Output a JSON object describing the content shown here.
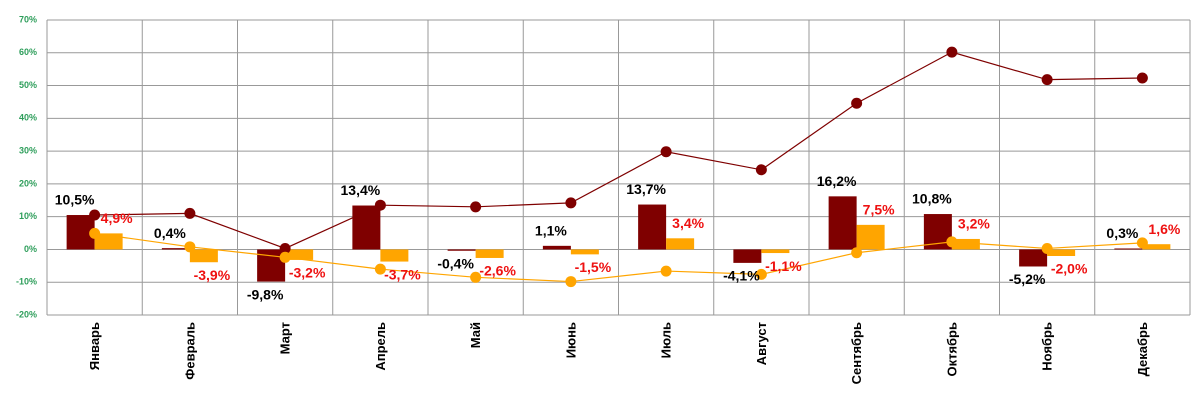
{
  "chart_data": {
    "type": "bar-line",
    "categories": [
      "Январь",
      "Февраль",
      "Март",
      "Апрель",
      "Май",
      "Июнь",
      "Июль",
      "Август",
      "Сентябрь",
      "Октябрь",
      "Ноябрь",
      "Декабрь"
    ],
    "series": [
      {
        "type": "bar",
        "color": "#7f0000",
        "values": [
          10.5,
          0.4,
          -9.8,
          13.4,
          -0.4,
          1.1,
          13.7,
          -4.1,
          16.2,
          10.8,
          -5.2,
          0.3
        ],
        "value_labels": [
          "10,5%",
          "0,4%",
          "-9,8%",
          "13,4%",
          "-0,4%",
          "1,1%",
          "13,7%",
          "-4,1%",
          "16,2%",
          "10,8%",
          "-5,2%",
          "0,3%"
        ]
      },
      {
        "type": "bar",
        "color": "#ffa500",
        "values": [
          4.9,
          -3.9,
          -3.2,
          -3.7,
          -2.6,
          -1.5,
          3.4,
          -1.1,
          7.5,
          3.2,
          -2.0,
          1.6
        ],
        "value_labels": [
          "4,9%",
          "-3,9%",
          "-3,2%",
          "-3,7%",
          "-2,6%",
          "-1,5%",
          "3,4%",
          "-1,1%",
          "7,5%",
          "3,2%",
          "-2,0%",
          "1,6%"
        ]
      },
      {
        "type": "line",
        "color": "#7f0000",
        "values": [
          10.5,
          11,
          0.3,
          13.5,
          13,
          14.2,
          29.8,
          24.3,
          44.6,
          60.2,
          51.8,
          52.3
        ]
      },
      {
        "type": "line",
        "color": "#ffa500",
        "values": [
          4.9,
          0.8,
          -2.4,
          -6,
          -8.5,
          -9.8,
          -6.6,
          -7.6,
          -1,
          2.3,
          0.3,
          2
        ]
      }
    ],
    "ylim": [
      -20,
      70
    ],
    "yticks": [
      {
        "value": -20,
        "label": "-20%"
      },
      {
        "value": -10,
        "label": "-10%"
      },
      {
        "value": 0,
        "label": "0%"
      },
      {
        "value": 10,
        "label": "10%"
      },
      {
        "value": 20,
        "label": "20%"
      },
      {
        "value": 30,
        "label": "30%"
      },
      {
        "value": 40,
        "label": "40%"
      },
      {
        "value": 50,
        "label": "50%"
      },
      {
        "value": 60,
        "label": "60%"
      },
      {
        "value": 70,
        "label": "70%"
      }
    ],
    "grid": true
  }
}
